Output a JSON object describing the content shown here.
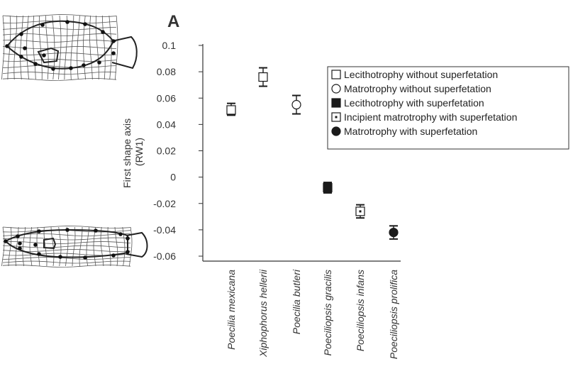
{
  "chart_data": {
    "type": "scatter",
    "panel_label": "A",
    "ylabel_lines": [
      "First shape axis",
      "(RW1)"
    ],
    "xlabel": "",
    "ylim": [
      -0.06,
      0.1
    ],
    "yticks": [
      0.1,
      0.08,
      0.06,
      0.04,
      0.02,
      0,
      -0.02,
      -0.04,
      -0.06
    ],
    "ytick_labels": [
      "0.1",
      "0.08",
      "0.06",
      "0.04",
      "0.02",
      "0",
      "-0.02",
      "-0.04",
      "-0.06"
    ],
    "categories": [
      "Poecilia mexicana",
      "Xiphophorus hellerii",
      "Poecilia butleri",
      "Poeciliopsis gracilis",
      "Poeciliopsis infans",
      "Poeciliopsis prolifica"
    ],
    "points": [
      {
        "category": "Poecilia mexicana",
        "value": 0.051,
        "err_low": 0.047,
        "err_high": 0.056,
        "marker": "open-square"
      },
      {
        "category": "Xiphophorus hellerii",
        "value": 0.076,
        "err_low": 0.069,
        "err_high": 0.083,
        "marker": "open-square"
      },
      {
        "category": "Poecilia butleri",
        "value": 0.055,
        "err_low": 0.048,
        "err_high": 0.062,
        "marker": "open-circle"
      },
      {
        "category": "Poeciliopsis gracilis",
        "value": -0.008,
        "err_low": -0.012,
        "err_high": -0.004,
        "marker": "filled-square"
      },
      {
        "category": "Poeciliopsis infans",
        "value": -0.026,
        "err_low": -0.031,
        "err_high": -0.021,
        "marker": "dotted-square"
      },
      {
        "category": "Poeciliopsis prolifica",
        "value": -0.042,
        "err_low": -0.047,
        "err_high": -0.037,
        "marker": "filled-circle"
      }
    ],
    "legend": {
      "position": "top-right",
      "entries": [
        {
          "marker": "open-square",
          "label": "Lecithotrophy without superfetation"
        },
        {
          "marker": "open-circle",
          "label": "Matrotrophy without superfetation"
        },
        {
          "marker": "filled-square",
          "label": "Lecithotrophy with superfetation"
        },
        {
          "marker": "dotted-square",
          "label": "Incipient matrotrophy with superfetation"
        },
        {
          "marker": "filled-circle",
          "label": "Matrotrophy with superfetation"
        }
      ]
    },
    "grid": false,
    "colors": {
      "axis": "#333333",
      "marker_fill": "#1a1a1a",
      "marker_open": "#ffffff"
    }
  },
  "illustrations": [
    {
      "name": "deformation-grid-positive",
      "description_icon": "fish-outline-grid-deep-body"
    },
    {
      "name": "deformation-grid-negative",
      "description_icon": "fish-outline-grid-slender-body"
    }
  ]
}
